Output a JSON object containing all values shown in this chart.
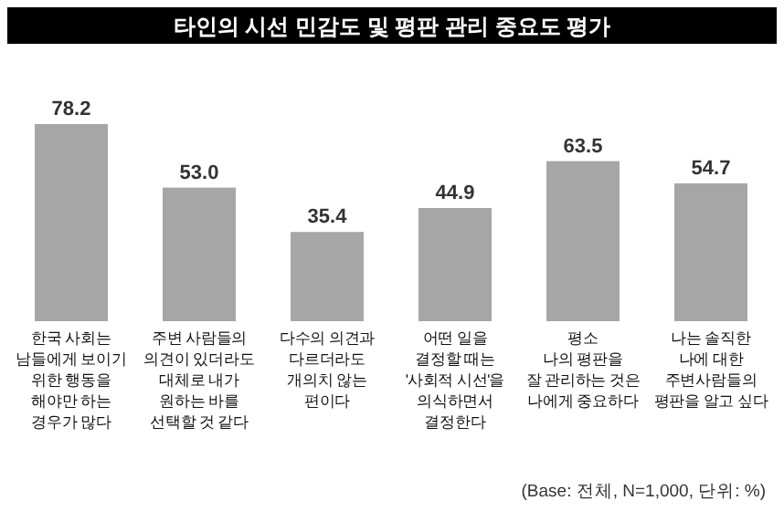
{
  "chart_data": {
    "type": "bar",
    "title": "타인의 시선 민감도 및 평판 관리 중요도 평가",
    "categories": [
      "한국 사회는\n남들에게 보이기\n위한 행동을\n해야만 하는\n경우가 많다",
      "주변 사람들의\n의견이 있더라도\n대체로 내가\n원하는 바를\n선택할 것 같다",
      "다수의 의견과\n다르더라도\n개의치 않는\n편이다",
      "어떤 일을\n결정할 때는\n'사회적 시선'을\n의식하면서\n결정한다",
      "평소\n나의 평판을\n잘 관리하는 것은\n나에게 중요하다",
      "나는 솔직한\n나에 대한\n주변사람들의\n평판을 알고 싶다"
    ],
    "values": [
      78.2,
      53.0,
      35.4,
      44.9,
      63.5,
      54.7
    ],
    "value_labels": [
      "78.2",
      "53.0",
      "35.4",
      "44.9",
      "63.5",
      "54.7"
    ],
    "color": "#a6a6a6",
    "annotations": [
      "(Base: 전체, N=1,000, 단위: %)"
    ]
  }
}
